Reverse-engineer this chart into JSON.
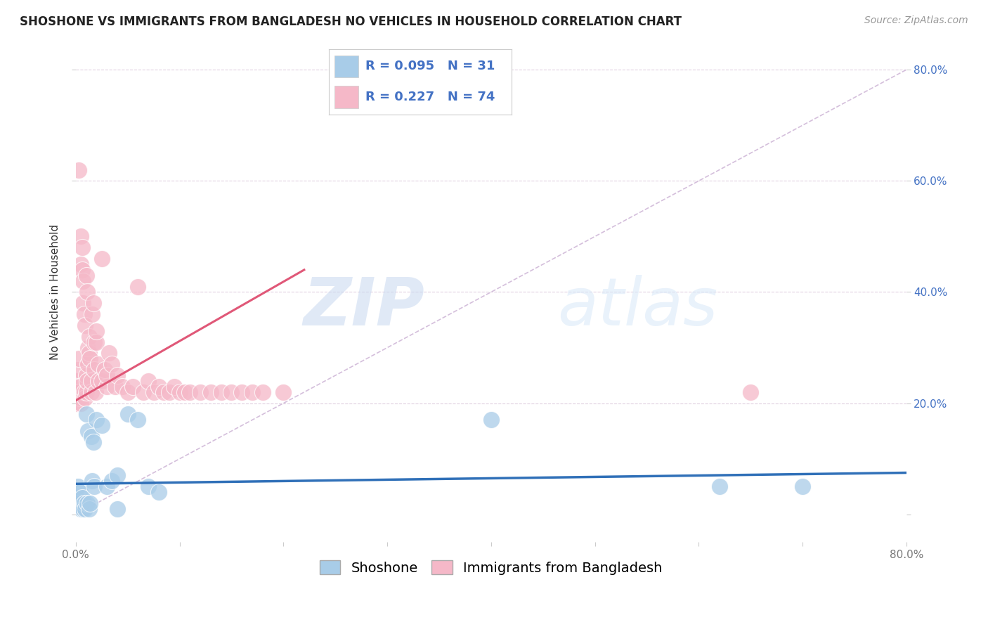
{
  "title": "SHOSHONE VS IMMIGRANTS FROM BANGLADESH NO VEHICLES IN HOUSEHOLD CORRELATION CHART",
  "source": "Source: ZipAtlas.com",
  "ylabel": "No Vehicles in Household",
  "legend_blue_R": "0.095",
  "legend_blue_N": "31",
  "legend_pink_R": "0.227",
  "legend_pink_N": "74",
  "legend_label_blue": "Shoshone",
  "legend_label_pink": "Immigrants from Bangladesh",
  "blue_color": "#a8cce8",
  "pink_color": "#f5b8c8",
  "blue_line_color": "#3070b8",
  "pink_line_color": "#e05878",
  "diagonal_color": "#d0b8d8",
  "watermark_zip": "ZIP",
  "watermark_atlas": "atlas",
  "xlim": [
    0.0,
    0.8
  ],
  "ylim": [
    -0.05,
    0.85
  ],
  "shoshone_x": [
    0.001,
    0.002,
    0.003,
    0.004,
    0.005,
    0.006,
    0.007,
    0.008,
    0.009,
    0.01,
    0.011,
    0.012,
    0.013,
    0.014,
    0.015,
    0.016,
    0.017,
    0.018,
    0.02,
    0.025,
    0.03,
    0.035,
    0.04,
    0.05,
    0.06,
    0.07,
    0.08,
    0.04,
    0.4,
    0.62,
    0.7
  ],
  "shoshone_y": [
    0.03,
    0.05,
    0.02,
    0.04,
    0.01,
    0.03,
    0.01,
    0.02,
    0.01,
    0.18,
    0.02,
    0.15,
    0.01,
    0.02,
    0.14,
    0.06,
    0.13,
    0.05,
    0.17,
    0.16,
    0.05,
    0.06,
    0.07,
    0.18,
    0.17,
    0.05,
    0.04,
    0.01,
    0.17,
    0.05,
    0.05
  ],
  "bangladesh_x": [
    0.001,
    0.001,
    0.001,
    0.002,
    0.002,
    0.003,
    0.003,
    0.003,
    0.004,
    0.004,
    0.005,
    0.005,
    0.005,
    0.006,
    0.006,
    0.007,
    0.007,
    0.008,
    0.008,
    0.009,
    0.009,
    0.01,
    0.01,
    0.01,
    0.011,
    0.011,
    0.012,
    0.012,
    0.013,
    0.013,
    0.014,
    0.015,
    0.015,
    0.016,
    0.017,
    0.018,
    0.018,
    0.019,
    0.02,
    0.02,
    0.022,
    0.022,
    0.025,
    0.025,
    0.028,
    0.03,
    0.03,
    0.032,
    0.035,
    0.038,
    0.04,
    0.045,
    0.05,
    0.055,
    0.06,
    0.065,
    0.07,
    0.075,
    0.08,
    0.085,
    0.09,
    0.095,
    0.1,
    0.105,
    0.11,
    0.12,
    0.13,
    0.14,
    0.15,
    0.16,
    0.17,
    0.18,
    0.2,
    0.65
  ],
  "bangladesh_y": [
    0.22,
    0.24,
    0.2,
    0.26,
    0.22,
    0.62,
    0.28,
    0.22,
    0.21,
    0.23,
    0.45,
    0.5,
    0.2,
    0.48,
    0.44,
    0.42,
    0.38,
    0.36,
    0.22,
    0.34,
    0.21,
    0.22,
    0.25,
    0.43,
    0.4,
    0.24,
    0.27,
    0.3,
    0.32,
    0.29,
    0.28,
    0.22,
    0.24,
    0.36,
    0.38,
    0.26,
    0.31,
    0.22,
    0.31,
    0.33,
    0.24,
    0.27,
    0.46,
    0.24,
    0.26,
    0.23,
    0.25,
    0.29,
    0.27,
    0.23,
    0.25,
    0.23,
    0.22,
    0.23,
    0.41,
    0.22,
    0.24,
    0.22,
    0.23,
    0.22,
    0.22,
    0.23,
    0.22,
    0.22,
    0.22,
    0.22,
    0.22,
    0.22,
    0.22,
    0.22,
    0.22,
    0.22,
    0.22,
    0.22
  ],
  "pink_line_x_start": 0.0,
  "pink_line_y_start": 0.205,
  "pink_line_x_end": 0.22,
  "pink_line_y_end": 0.44,
  "blue_line_x_start": 0.0,
  "blue_line_y_start": 0.055,
  "blue_line_x_end": 0.8,
  "blue_line_y_end": 0.075,
  "title_fontsize": 12,
  "axis_label_fontsize": 11,
  "tick_fontsize": 11,
  "legend_fontsize": 13,
  "source_fontsize": 10
}
